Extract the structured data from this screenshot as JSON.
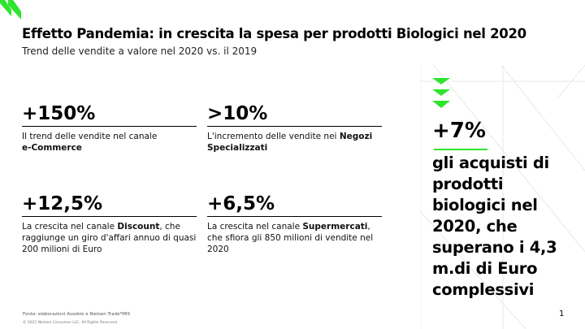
{
  "header": {
    "title": "Effetto Pandemia: in crescita la spesa per prodotti Biologici nel 2020",
    "subtitle": "Trend delle vendite a valore nel 2020 vs. il 2019"
  },
  "stats": [
    {
      "value": "+150%",
      "desc_pre": "Il trend delle vendite nel canale ",
      "desc_bold": "e-Commerce",
      "desc_post": ""
    },
    {
      "value": ">10%",
      "desc_pre": "L'incremento delle vendite nei ",
      "desc_bold": "Negozi Specializzati",
      "desc_post": ""
    },
    {
      "value": "+12,5%",
      "desc_pre": "La crescita nel canale ",
      "desc_bold": "Discount",
      "desc_post": ", che raggiunge un giro d'affari annuo di quasi 200 milioni di Euro"
    },
    {
      "value": "+6,5%",
      "desc_pre": "La crescita nel canale ",
      "desc_bold": "Supermercati",
      "desc_post": ", che sfiora gli 850 milioni di vendite nel 2020"
    }
  ],
  "highlight": {
    "value": "+7%",
    "text": "gli acquisti di prodotti biologici nel 2020, che superano i 4,3 m.di di Euro complessivi"
  },
  "footer": {
    "source": "Fonte: elaborazioni Assobio e Nielsen Trade*MIS",
    "copyright": "© 2021 Nielsen Consumer LLC. All Rights Reserved.",
    "page": "1"
  },
  "colors": {
    "accent": "#2ee52e"
  }
}
